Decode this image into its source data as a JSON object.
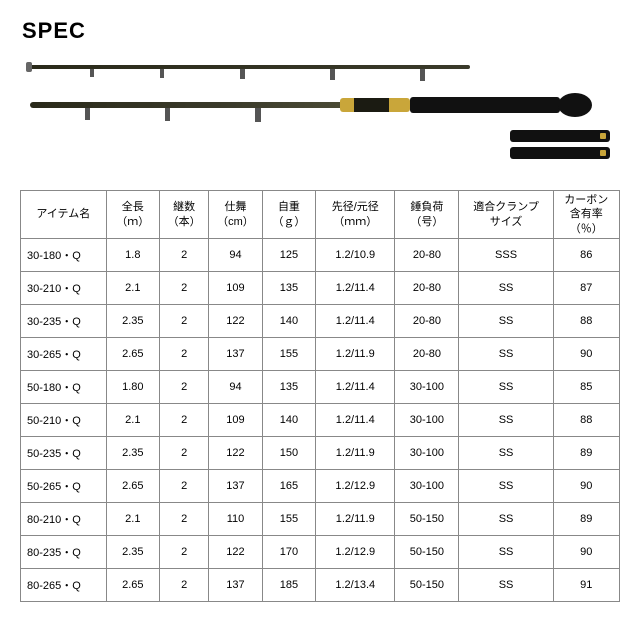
{
  "title": "SPEC",
  "table": {
    "columns": [
      {
        "key": "name",
        "label": "アイテム名",
        "cls": "c-name"
      },
      {
        "key": "length",
        "label": "全長\n（ｍ）",
        "cls": "c-1"
      },
      {
        "key": "pieces",
        "label": "継数\n（本）",
        "cls": "c-2"
      },
      {
        "key": "closed",
        "label": "仕舞\n（cm）",
        "cls": "c-3"
      },
      {
        "key": "weight",
        "label": "自重\n（ｇ）",
        "cls": "c-4"
      },
      {
        "key": "dia",
        "label": "先径/元径\n（ｍｍ）",
        "cls": "c-5"
      },
      {
        "key": "sinker",
        "label": "錘負荷\n（号）",
        "cls": "c-6"
      },
      {
        "key": "clamp",
        "label": "適合クランプ\nサイズ",
        "cls": "c-7"
      },
      {
        "key": "carbon",
        "label": "カーボン\n含有率\n（％）",
        "cls": "c-8"
      }
    ],
    "rows": [
      {
        "name": "30-180・Q",
        "length": "1.8",
        "pieces": "2",
        "closed": "94",
        "weight": "125",
        "dia": "1.2/10.9",
        "sinker": "20-80",
        "clamp": "SSS",
        "carbon": "86"
      },
      {
        "name": "30-210・Q",
        "length": "2.1",
        "pieces": "2",
        "closed": "109",
        "weight": "135",
        "dia": "1.2/11.4",
        "sinker": "20-80",
        "clamp": "SS",
        "carbon": "87"
      },
      {
        "name": "30-235・Q",
        "length": "2.35",
        "pieces": "2",
        "closed": "122",
        "weight": "140",
        "dia": "1.2/11.4",
        "sinker": "20-80",
        "clamp": "SS",
        "carbon": "88"
      },
      {
        "name": "30-265・Q",
        "length": "2.65",
        "pieces": "2",
        "closed": "137",
        "weight": "155",
        "dia": "1.2/11.9",
        "sinker": "20-80",
        "clamp": "SS",
        "carbon": "90"
      },
      {
        "name": "50-180・Q",
        "length": "1.80",
        "pieces": "2",
        "closed": "94",
        "weight": "135",
        "dia": "1.2/11.4",
        "sinker": "30-100",
        "clamp": "SS",
        "carbon": "85"
      },
      {
        "name": "50-210・Q",
        "length": "2.1",
        "pieces": "2",
        "closed": "109",
        "weight": "140",
        "dia": "1.2/11.4",
        "sinker": "30-100",
        "clamp": "SS",
        "carbon": "88"
      },
      {
        "name": "50-235・Q",
        "length": "2.35",
        "pieces": "2",
        "closed": "122",
        "weight": "150",
        "dia": "1.2/11.9",
        "sinker": "30-100",
        "clamp": "SS",
        "carbon": "89"
      },
      {
        "name": "50-265・Q",
        "length": "2.65",
        "pieces": "2",
        "closed": "137",
        "weight": "165",
        "dia": "1.2/12.9",
        "sinker": "30-100",
        "clamp": "SS",
        "carbon": "90"
      },
      {
        "name": "80-210・Q",
        "length": "2.1",
        "pieces": "2",
        "closed": "110",
        "weight": "155",
        "dia": "1.2/11.9",
        "sinker": "50-150",
        "clamp": "SS",
        "carbon": "89"
      },
      {
        "name": "80-235・Q",
        "length": "2.35",
        "pieces": "2",
        "closed": "122",
        "weight": "170",
        "dia": "1.2/12.9",
        "sinker": "50-150",
        "clamp": "SS",
        "carbon": "90"
      },
      {
        "name": "80-265・Q",
        "length": "2.65",
        "pieces": "2",
        "closed": "137",
        "weight": "185",
        "dia": "1.2/13.4",
        "sinker": "50-150",
        "clamp": "SS",
        "carbon": "91"
      }
    ]
  }
}
